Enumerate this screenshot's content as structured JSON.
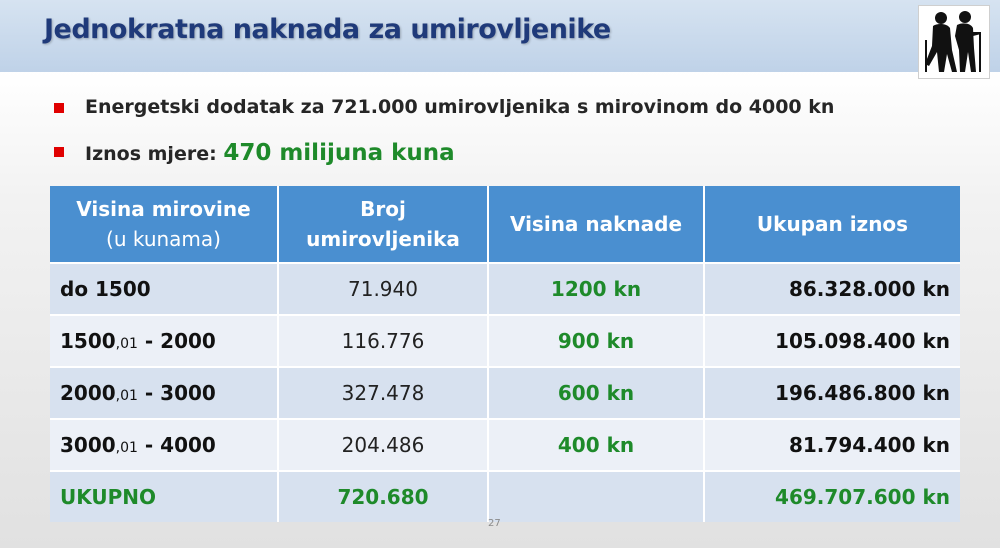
{
  "title": "Jednokratna naknada za umirovljenike",
  "logo_icon": "elderly-couple-icon",
  "bullets": [
    {
      "text": "Energetski dodatak za 721.000 umirovljenika s mirovinom do 4000 kn"
    },
    {
      "text": "Iznos mjere: ",
      "highlight": "470 milijuna kuna"
    }
  ],
  "table": {
    "headers": {
      "col1_line1": "Visina mirovine",
      "col1_line2": "(u kunama)",
      "col2_line1": "Broj",
      "col2_line2": "umirovljenika",
      "col3": "Visina naknade",
      "col4": "Ukupan iznos"
    },
    "rows": [
      {
        "range_main": "do 1500",
        "range_small": "",
        "range_end": "",
        "count": "71.940",
        "naknada": "1200 kn",
        "iznos": "86.328.000 kn"
      },
      {
        "range_main": "1500",
        "range_small": ",01",
        "range_end": " - 2000",
        "count": "116.776",
        "naknada": "900 kn",
        "iznos": "105.098.400 kn"
      },
      {
        "range_main": "2000",
        "range_small": ",01",
        "range_end": " - 3000",
        "count": "327.478",
        "naknada": "600 kn",
        "iznos": "196.486.800 kn"
      },
      {
        "range_main": "3000",
        "range_small": ",01",
        "range_end": " - 4000",
        "count": "204.486",
        "naknada": "400 kn",
        "iznos": "81.794.400 kn"
      }
    ],
    "total": {
      "label": "UKUPNO",
      "count": "720.680",
      "naknada": "",
      "iznos": "469.707.600 kn"
    }
  },
  "page_number": "27",
  "colors": {
    "title": "#1f3a7a",
    "header_bg": "#4a8fd0",
    "row_dark": "#d7e1ef",
    "row_light": "#ecf0f7",
    "green": "#1e8a2a",
    "bullet_red": "#e00000"
  }
}
